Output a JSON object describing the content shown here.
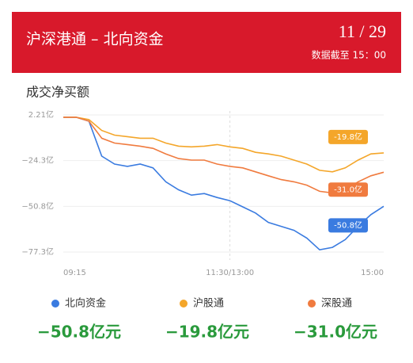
{
  "header": {
    "title": "沪深港通 – 北向资金",
    "date": "11 / 29",
    "updated": "数据截至 15：00"
  },
  "chart_data": {
    "type": "line",
    "title": "成交净买额",
    "categories": [
      "09:15",
      null,
      null,
      null,
      null,
      null,
      null,
      null,
      null,
      null,
      null,
      null,
      null,
      "11:30/13:00",
      null,
      null,
      null,
      null,
      null,
      null,
      null,
      null,
      null,
      null,
      null,
      "15:00"
    ],
    "ylim": [
      -77.3,
      2.21
    ],
    "yticks": [
      {
        "value": 2.21,
        "label": "2.21亿"
      },
      {
        "value": -24.3,
        "label": "−24.3亿"
      },
      {
        "value": -50.8,
        "label": "−50.8亿"
      },
      {
        "value": -77.3,
        "label": "−77.3亿"
      }
    ],
    "grid": true,
    "series": [
      {
        "name": "北向资金",
        "color": "#3a7be0",
        "end_label": "-50.8亿",
        "total_label": "−50.8亿元",
        "values": [
          0.9,
          0.9,
          -1.4,
          -21.7,
          -26.3,
          -27.6,
          -26.3,
          -28.5,
          -36.6,
          -41.2,
          -44.3,
          -43.4,
          -45.7,
          -47.5,
          -51.1,
          -54.7,
          -60.1,
          -62.4,
          -64.7,
          -69.2,
          -76.0,
          -74.6,
          -70.1,
          -62.4,
          -55.6,
          -50.8
        ]
      },
      {
        "name": "沪股通",
        "color": "#f4a62a",
        "end_label": "-19.8亿",
        "total_label": "−19.8亿元",
        "values": [
          0.9,
          0.9,
          -0.5,
          -6.8,
          -9.5,
          -10.4,
          -11.3,
          -11.3,
          -14.1,
          -15.9,
          -16.3,
          -15.9,
          -15.0,
          -16.3,
          -17.2,
          -19.5,
          -20.4,
          -21.7,
          -24.0,
          -26.3,
          -29.9,
          -30.8,
          -28.5,
          -24.0,
          -20.4,
          -19.8
        ]
      },
      {
        "name": "深股通",
        "color": "#f07b3f",
        "end_label": "-31.0亿",
        "total_label": "−31.0亿元",
        "values": [
          0.9,
          0.9,
          -1.4,
          -11.3,
          -14.1,
          -15.0,
          -15.9,
          -17.2,
          -20.4,
          -23.1,
          -24.0,
          -24.0,
          -26.3,
          -27.6,
          -28.5,
          -30.8,
          -33.1,
          -35.3,
          -36.6,
          -38.5,
          -42.1,
          -43.0,
          -41.2,
          -36.6,
          -33.1,
          -31.0
        ]
      }
    ]
  }
}
